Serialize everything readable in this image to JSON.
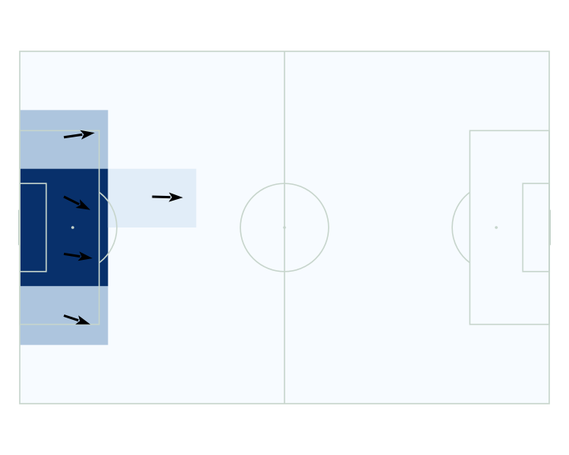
{
  "chart_data": {
    "type": "heatmap",
    "title": "",
    "pitch": {
      "length": 120,
      "width": 80
    },
    "bins": {
      "x": 6,
      "y": 6
    },
    "grid_counts": [
      [
        0,
        2,
        9,
        9,
        2,
        0
      ],
      [
        0,
        0,
        1,
        0,
        0,
        0
      ],
      [
        0,
        0,
        0,
        0,
        0,
        0
      ],
      [
        0,
        0,
        0,
        0,
        0,
        0
      ],
      [
        0,
        0,
        0,
        0,
        0,
        0
      ],
      [
        0,
        0,
        0,
        0,
        0,
        0
      ]
    ],
    "arrows": [
      {
        "x0": 10,
        "y0": 19.5,
        "x1": 17,
        "y1": 18.5
      },
      {
        "x0": 10,
        "y0": 33,
        "x1": 16,
        "y1": 36
      },
      {
        "x0": 10,
        "y0": 46,
        "x1": 16.5,
        "y1": 47
      },
      {
        "x0": 10,
        "y0": 60,
        "x1": 16,
        "y1": 62
      },
      {
        "x0": 30,
        "y0": 33,
        "x1": 37,
        "y1": 33.2
      }
    ],
    "colors": {
      "pitch_bg": "#f7fbff",
      "line": "#c7d5cc",
      "cmap_low": "#f7fbff",
      "cmap_mid": "#c6dbef",
      "cmap_high": "#08306b",
      "arrow": "#000000"
    }
  }
}
